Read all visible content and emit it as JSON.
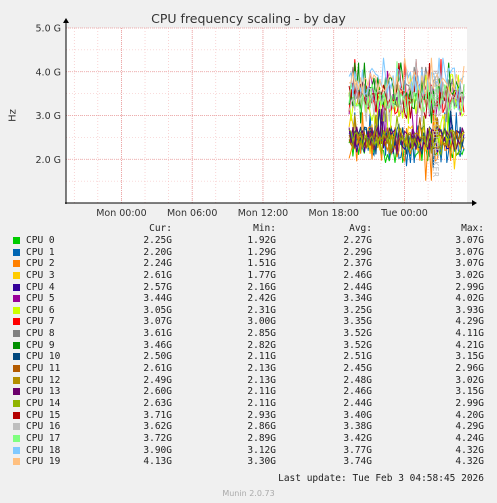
{
  "chart_data": {
    "type": "line",
    "title": "CPU frequency scaling - by day",
    "ylabel": "Hz",
    "ylim": [
      1.0,
      5.0
    ],
    "yticks": [
      "5.0 G",
      "4.0 G",
      "3.0 G",
      "2.0 G"
    ],
    "ytick_values": [
      5.0,
      4.0,
      3.0,
      2.0
    ],
    "xticks": [
      "Mon 00:00",
      "Mon 06:00",
      "Mon 12:00",
      "Mon 18:00",
      "Tue 00:00"
    ],
    "xtick_hours": [
      0,
      6,
      12,
      18,
      24
    ],
    "x_range_hours": [
      -4.7,
      29.3
    ],
    "data_start_hour": 19.3,
    "grid": true,
    "side_label": "RRDTOOL / TOBI OETIKER",
    "legend_columns": [
      "Cur:",
      "Min:",
      "Avg:",
      "Max:"
    ],
    "series": [
      {
        "name": "CPU 0",
        "color": "#00cc00",
        "cur": "2.25G",
        "min": "1.92G",
        "avg": "2.27G",
        "max": "3.07G"
      },
      {
        "name": "CPU 1",
        "color": "#0066b3",
        "cur": "2.20G",
        "min": "1.29G",
        "avg": "2.29G",
        "max": "3.07G"
      },
      {
        "name": "CPU 2",
        "color": "#ff8000",
        "cur": "2.24G",
        "min": "1.51G",
        "avg": "2.37G",
        "max": "3.07G"
      },
      {
        "name": "CPU 3",
        "color": "#ffcc00",
        "cur": "2.61G",
        "min": "1.77G",
        "avg": "2.46G",
        "max": "3.02G"
      },
      {
        "name": "CPU 4",
        "color": "#330099",
        "cur": "2.57G",
        "min": "2.16G",
        "avg": "2.44G",
        "max": "2.99G"
      },
      {
        "name": "CPU 5",
        "color": "#990099",
        "cur": "3.44G",
        "min": "2.42G",
        "avg": "3.34G",
        "max": "4.02G"
      },
      {
        "name": "CPU 6",
        "color": "#ccff00",
        "cur": "3.05G",
        "min": "2.31G",
        "avg": "3.25G",
        "max": "3.93G"
      },
      {
        "name": "CPU 7",
        "color": "#ff0000",
        "cur": "3.07G",
        "min": "3.00G",
        "avg": "3.35G",
        "max": "4.29G"
      },
      {
        "name": "CPU 8",
        "color": "#808080",
        "cur": "3.61G",
        "min": "2.85G",
        "avg": "3.52G",
        "max": "4.11G"
      },
      {
        "name": "CPU 9",
        "color": "#008f00",
        "cur": "3.46G",
        "min": "2.82G",
        "avg": "3.52G",
        "max": "4.21G"
      },
      {
        "name": "CPU 10",
        "color": "#00487d",
        "cur": "2.50G",
        "min": "2.11G",
        "avg": "2.51G",
        "max": "3.15G"
      },
      {
        "name": "CPU 11",
        "color": "#b35a00",
        "cur": "2.61G",
        "min": "2.13G",
        "avg": "2.45G",
        "max": "2.96G"
      },
      {
        "name": "CPU 12",
        "color": "#b38f00",
        "cur": "2.49G",
        "min": "2.13G",
        "avg": "2.48G",
        "max": "3.02G"
      },
      {
        "name": "CPU 13",
        "color": "#6b006b",
        "cur": "2.60G",
        "min": "2.11G",
        "avg": "2.46G",
        "max": "3.15G"
      },
      {
        "name": "CPU 14",
        "color": "#8fb300",
        "cur": "2.63G",
        "min": "2.11G",
        "avg": "2.44G",
        "max": "2.99G"
      },
      {
        "name": "CPU 15",
        "color": "#b30000",
        "cur": "3.71G",
        "min": "2.93G",
        "avg": "3.40G",
        "max": "4.20G"
      },
      {
        "name": "CPU 16",
        "color": "#bebebe",
        "cur": "3.62G",
        "min": "2.86G",
        "avg": "3.38G",
        "max": "4.29G"
      },
      {
        "name": "CPU 17",
        "color": "#80ff80",
        "cur": "3.72G",
        "min": "2.89G",
        "avg": "3.42G",
        "max": "4.24G"
      },
      {
        "name": "CPU 18",
        "color": "#80c9ff",
        "cur": "3.90G",
        "min": "3.12G",
        "avg": "3.77G",
        "max": "4.32G"
      },
      {
        "name": "CPU 19",
        "color": "#ffc080",
        "cur": "4.13G",
        "min": "3.30G",
        "avg": "3.74G",
        "max": "4.32G"
      }
    ]
  },
  "last_update": "Last update: Tue Feb  3 04:58:45 2026",
  "footer": "Munin 2.0.73"
}
